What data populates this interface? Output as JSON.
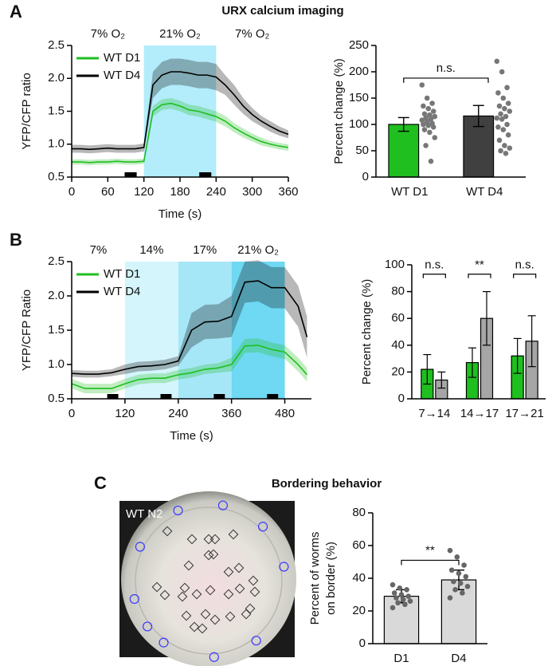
{
  "chart_data": [
    {
      "type": "line",
      "panel": "A",
      "title": "URX calcium imaging",
      "x": [
        0,
        15,
        30,
        45,
        60,
        75,
        90,
        105,
        120,
        135,
        150,
        165,
        180,
        195,
        210,
        225,
        240,
        255,
        270,
        285,
        300,
        315,
        330,
        345,
        360
      ],
      "xlim": [
        0,
        360
      ],
      "xticks": [
        0,
        60,
        120,
        180,
        240,
        300,
        360
      ],
      "ylim": [
        0.5,
        2.5
      ],
      "yticks": [
        0.5,
        {
          "value": 1,
          "label": "1.0"
        },
        1.5,
        {
          "value": 2,
          "label": "2.0"
        },
        2.5
      ],
      "xlabel": "Time (s)",
      "ylabel": "YFP/CFP ratio",
      "legend": "upper left",
      "phases": [
        {
          "label": "7% O₂",
          "range": [
            0,
            120
          ]
        },
        {
          "label": "21% O₂",
          "range": [
            120,
            240
          ],
          "color": "#b3ecfa"
        },
        {
          "label": "7% O₂",
          "range": [
            240,
            360
          ]
        }
      ],
      "stimulus": [
        [
          88,
          108
        ],
        [
          212,
          232
        ]
      ],
      "series": [
        {
          "name": "WT D1",
          "color": "#1fbf1f",
          "values": [
            0.73,
            0.73,
            0.72,
            0.73,
            0.73,
            0.74,
            0.73,
            0.73,
            0.74,
            1.5,
            1.6,
            1.62,
            1.58,
            1.52,
            1.5,
            1.46,
            1.42,
            1.35,
            1.25,
            1.17,
            1.1,
            1.04,
            1.0,
            0.97,
            0.95
          ],
          "errors": [
            0.04,
            0.04,
            0.04,
            0.04,
            0.04,
            0.04,
            0.04,
            0.04,
            0.04,
            0.08,
            0.08,
            0.08,
            0.08,
            0.08,
            0.08,
            0.08,
            0.08,
            0.08,
            0.07,
            0.07,
            0.06,
            0.06,
            0.05,
            0.05,
            0.05
          ]
        },
        {
          "name": "WT D4",
          "color": "#000000",
          "values": [
            0.93,
            0.93,
            0.92,
            0.93,
            0.94,
            0.93,
            0.93,
            0.93,
            0.95,
            1.9,
            2.05,
            2.1,
            2.1,
            2.08,
            2.05,
            2.05,
            2.02,
            1.9,
            1.75,
            1.58,
            1.45,
            1.35,
            1.27,
            1.2,
            1.15
          ],
          "errors": [
            0.06,
            0.06,
            0.06,
            0.06,
            0.06,
            0.06,
            0.06,
            0.06,
            0.06,
            0.2,
            0.2,
            0.2,
            0.2,
            0.2,
            0.2,
            0.2,
            0.2,
            0.15,
            0.15,
            0.12,
            0.1,
            0.08,
            0.08,
            0.07,
            0.06
          ]
        }
      ]
    },
    {
      "type": "bar",
      "categories": [
        "WT D1",
        "WT D4"
      ],
      "values": [
        100,
        116
      ],
      "errors": [
        13,
        20
      ],
      "colors": [
        "#1fbf1f",
        "#404040"
      ],
      "points_color": "#777777",
      "points": [
        [
          175,
          150,
          140,
          135,
          130,
          125,
          120,
          118,
          115,
          112,
          110,
          108,
          105,
          102,
          100,
          98,
          95,
          90,
          85,
          75,
          60,
          30
        ],
        [
          220,
          200,
          170,
          160,
          150,
          140,
          135,
          130,
          125,
          120,
          115,
          112,
          110,
          100,
          95,
          90,
          80,
          70,
          60,
          55,
          50,
          45
        ]
      ],
      "ylim": [
        0,
        250
      ],
      "yticks": [
        0,
        50,
        100,
        150,
        200,
        250
      ],
      "ylabel": "Percent change (%)",
      "comparison": "n.s.",
      "comparison_y": 188
    },
    {
      "type": "line",
      "panel": "B",
      "x": [
        0,
        30,
        60,
        90,
        120,
        150,
        180,
        210,
        240,
        270,
        300,
        330,
        360,
        390,
        420,
        450,
        480,
        510,
        530
      ],
      "xlim": [
        0,
        540
      ],
      "xticks": [
        0,
        120,
        240,
        360,
        480
      ],
      "ylim": [
        0.5,
        2.5
      ],
      "yticks": [
        0.5,
        {
          "value": 1,
          "label": "1.0"
        },
        1.5,
        {
          "value": 2,
          "label": "2.0"
        },
        2.5
      ],
      "xlabel": "Time (s)",
      "ylabel": "YFP/CFP Ratio",
      "legend": "upper left",
      "phases": [
        {
          "label": "7%",
          "range": [
            0,
            120
          ]
        },
        {
          "label": "14%",
          "range": [
            120,
            240
          ],
          "color": "#d4f5fc"
        },
        {
          "label": "17%",
          "range": [
            240,
            360
          ],
          "color": "#a6e7f7"
        },
        {
          "label": "21% O₂",
          "range": [
            360,
            480
          ],
          "color": "#6fd8f2"
        }
      ],
      "stimulus": [
        [
          80,
          105
        ],
        [
          200,
          225
        ],
        [
          320,
          345
        ],
        [
          440,
          465
        ]
      ],
      "series": [
        {
          "name": "WT D1",
          "color": "#1fbf1f",
          "values": [
            0.72,
            0.65,
            0.65,
            0.65,
            0.72,
            0.78,
            0.8,
            0.8,
            0.85,
            0.88,
            0.93,
            0.95,
            1.0,
            1.27,
            1.28,
            1.22,
            1.18,
            1.0,
            0.85
          ],
          "errors": [
            0.07,
            0.07,
            0.07,
            0.07,
            0.07,
            0.07,
            0.07,
            0.07,
            0.07,
            0.07,
            0.07,
            0.07,
            0.1,
            0.1,
            0.1,
            0.1,
            0.1,
            0.1,
            0.1
          ]
        },
        {
          "name": "WT D4",
          "color": "#000000",
          "values": [
            0.87,
            0.86,
            0.86,
            0.88,
            0.93,
            0.97,
            0.98,
            1.0,
            1.05,
            1.5,
            1.62,
            1.63,
            1.7,
            2.2,
            2.22,
            2.12,
            2.12,
            1.85,
            1.4
          ],
          "errors": [
            0.05,
            0.05,
            0.05,
            0.05,
            0.07,
            0.07,
            0.07,
            0.07,
            0.07,
            0.25,
            0.25,
            0.25,
            0.3,
            0.3,
            0.3,
            0.3,
            0.3,
            0.3,
            0.3
          ]
        }
      ]
    },
    {
      "type": "grouped_bar",
      "categories": [
        "7→14",
        "14→17",
        "17→21"
      ],
      "series": [
        {
          "color": "#1fbf1f",
          "values": [
            22,
            27,
            32
          ],
          "errors": [
            11,
            11,
            13
          ]
        },
        {
          "color": "#a6a6a6",
          "values": [
            14,
            60,
            43
          ],
          "errors": [
            6,
            20,
            19
          ]
        }
      ],
      "annotations": [
        "n.s.",
        "**",
        "n.s."
      ],
      "annotation_y": [
        93,
        93,
        93
      ],
      "ylim": [
        0,
        100
      ],
      "yticks": [
        0,
        20,
        40,
        60,
        80,
        100
      ],
      "ylabel": "Percent change (%)"
    },
    {
      "type": "bar",
      "title": "Bordering behavior",
      "categories": [
        "D1",
        "D4"
      ],
      "values": [
        29,
        39
      ],
      "errors": [
        4,
        6
      ],
      "colors": [
        "#d9d9d9",
        "#d9d9d9"
      ],
      "points_color": "#666666",
      "points": [
        [
          36,
          34,
          33,
          31,
          30,
          29,
          28,
          27,
          26,
          25,
          24,
          22
        ],
        [
          57,
          53,
          48,
          45,
          43,
          41,
          38,
          37,
          35,
          33,
          31,
          28
        ]
      ],
      "ylim": [
        0,
        80
      ],
      "yticks": [
        0,
        20,
        40,
        60,
        80
      ],
      "ylabel": [
        "Percent of worms",
        "on border (%)"
      ],
      "comparison": "**",
      "comparison_y": 51
    }
  ],
  "image": {
    "panel": "C",
    "label": "WT N2"
  }
}
